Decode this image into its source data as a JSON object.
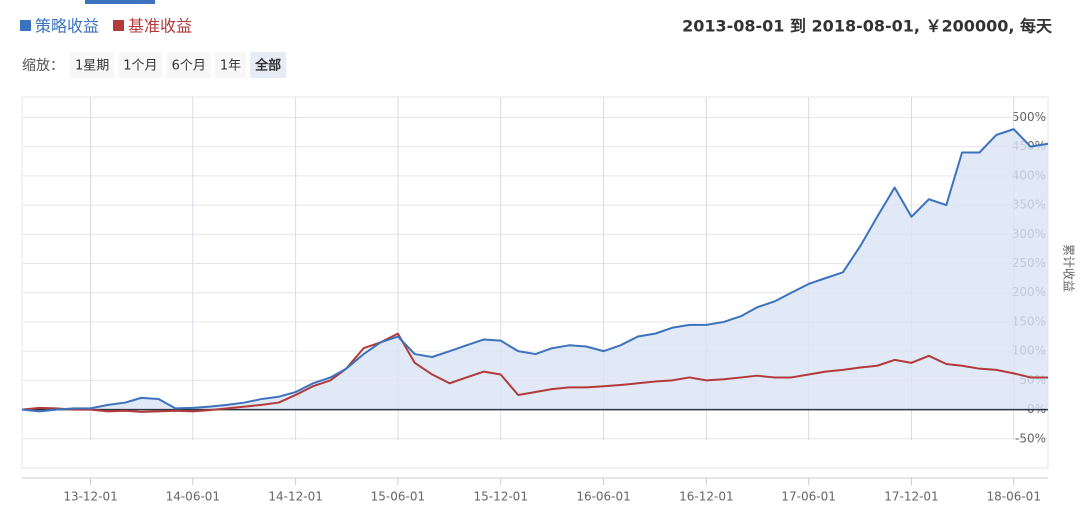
{
  "chart_data": {
    "type": "line",
    "title": "2013-08-01 到 2018-08-01, ￥200000, 每天",
    "zoom_label": "缩放：",
    "zoom_options": [
      "1星期",
      "1个月",
      "6个月",
      "1年",
      "全部"
    ],
    "zoom_selected": 4,
    "y_label": "累计收益",
    "x": [
      "2013-08-01",
      "2013-09-01",
      "2013-10-01",
      "2013-11-01",
      "2013-12-01",
      "2014-01-01",
      "2014-02-01",
      "2014-03-01",
      "2014-04-01",
      "2014-05-01",
      "2014-06-01",
      "2014-07-01",
      "2014-08-01",
      "2014-09-01",
      "2014-10-01",
      "2014-11-01",
      "2014-12-01",
      "2015-01-01",
      "2015-02-01",
      "2015-03-01",
      "2015-04-01",
      "2015-05-01",
      "2015-06-01",
      "2015-07-01",
      "2015-08-01",
      "2015-09-01",
      "2015-10-01",
      "2015-11-01",
      "2015-12-01",
      "2016-01-01",
      "2016-02-01",
      "2016-03-01",
      "2016-04-01",
      "2016-05-01",
      "2016-06-01",
      "2016-07-01",
      "2016-08-01",
      "2016-09-01",
      "2016-10-01",
      "2016-11-01",
      "2016-12-01",
      "2017-01-01",
      "2017-02-01",
      "2017-03-01",
      "2017-04-01",
      "2017-05-01",
      "2017-06-01",
      "2017-07-01",
      "2017-08-01",
      "2017-09-01",
      "2017-10-01",
      "2017-11-01",
      "2017-12-01",
      "2018-01-01",
      "2018-02-01",
      "2018-03-01",
      "2018-04-01",
      "2018-05-01",
      "2018-06-01",
      "2018-07-01",
      "2018-08-01"
    ],
    "series": [
      {
        "name": "策略收益",
        "color": "#3d73be",
        "values": [
          0,
          -3,
          0,
          2,
          2,
          8,
          12,
          20,
          18,
          2,
          3,
          5,
          8,
          12,
          18,
          22,
          30,
          45,
          55,
          70,
          95,
          115,
          125,
          95,
          90,
          100,
          110,
          120,
          118,
          100,
          95,
          105,
          110,
          108,
          100,
          110,
          125,
          130,
          140,
          145,
          145,
          150,
          160,
          175,
          185,
          200,
          215,
          225,
          235,
          280,
          330,
          380,
          330,
          360,
          350,
          440,
          440,
          470,
          480,
          450,
          455
        ]
      },
      {
        "name": "基准收益",
        "color": "#b23a3a",
        "values": [
          0,
          3,
          2,
          0,
          0,
          -3,
          -2,
          -4,
          -3,
          -2,
          -3,
          -1,
          2,
          5,
          8,
          12,
          25,
          40,
          50,
          70,
          105,
          115,
          130,
          80,
          60,
          45,
          55,
          65,
          60,
          25,
          30,
          35,
          38,
          38,
          40,
          42,
          45,
          48,
          50,
          55,
          50,
          52,
          55,
          58,
          55,
          55,
          60,
          65,
          68,
          72,
          75,
          85,
          80,
          92,
          78,
          75,
          70,
          68,
          62,
          55,
          55
        ]
      }
    ],
    "ylim": [
      -100,
      535
    ],
    "yticks": [
      {
        "value": -50,
        "label": "-50%"
      },
      {
        "value": 0,
        "label": "0%"
      },
      {
        "value": 50,
        "label": "50%"
      },
      {
        "value": 100,
        "label": "100%"
      },
      {
        "value": 150,
        "label": "150%"
      },
      {
        "value": 200,
        "label": "200%"
      },
      {
        "value": 250,
        "label": "250%"
      },
      {
        "value": 300,
        "label": "300%"
      },
      {
        "value": 350,
        "label": "350%"
      },
      {
        "value": 400,
        "label": "400%"
      },
      {
        "value": 450,
        "label": "450%"
      },
      {
        "value": 500,
        "label": "500%"
      }
    ],
    "xticks": [
      {
        "value": "2013-12-01",
        "label": "13-12-01"
      },
      {
        "value": "2014-06-01",
        "label": "14-06-01"
      },
      {
        "value": "2014-12-01",
        "label": "14-12-01"
      },
      {
        "value": "2015-06-01",
        "label": "15-06-01"
      },
      {
        "value": "2015-12-01",
        "label": "15-12-01"
      },
      {
        "value": "2016-06-01",
        "label": "16-06-01"
      },
      {
        "value": "2016-12-01",
        "label": "16-12-01"
      },
      {
        "value": "2017-06-01",
        "label": "17-06-01"
      },
      {
        "value": "2017-12-01",
        "label": "17-12-01"
      },
      {
        "value": "2018-06-01",
        "label": "18-06-01"
      }
    ],
    "grid": true
  }
}
